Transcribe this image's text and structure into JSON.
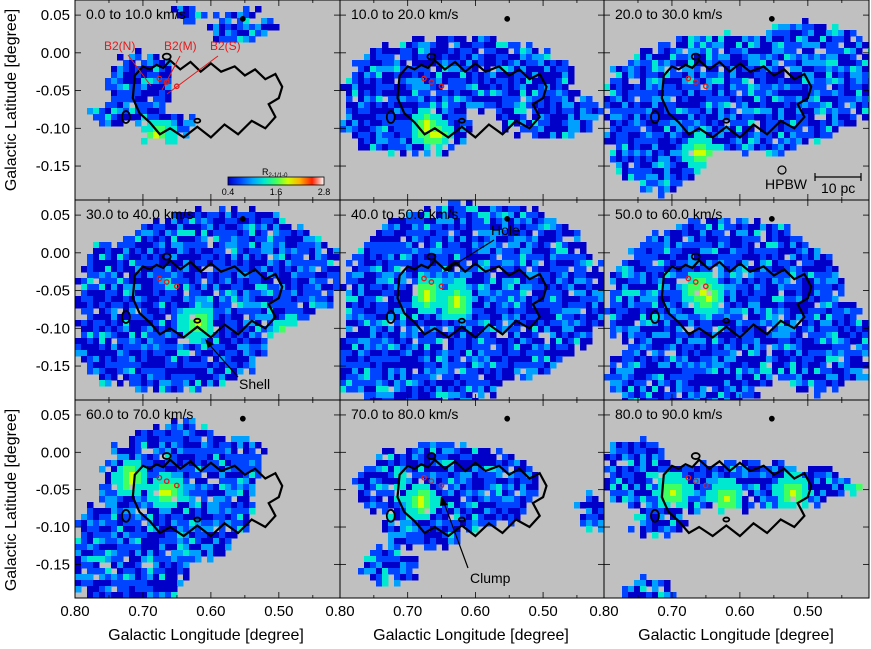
{
  "chart_data": {
    "type": "heatmap",
    "layout": "3x3 grid of channel maps",
    "x_axis": {
      "label": "Galactic Longitude [degree]",
      "ticks": [
        "0.80",
        "0.70",
        "0.60",
        "0.50"
      ],
      "range": [
        0.8,
        0.41
      ],
      "direction": "decreasing to the right"
    },
    "y_axis": {
      "label": "Galactic Latitude [degree]",
      "ticks": [
        "0.05",
        "0.00",
        "-0.05",
        "-0.10",
        "-0.15"
      ],
      "range": [
        -0.195,
        0.07
      ]
    },
    "background_color": "#c0c0c0",
    "colorbar": {
      "label": "R",
      "label_subscript": "2-1/1-0",
      "ticks": [
        "0.4",
        "1.6",
        "2.8"
      ],
      "range": [
        0.4,
        2.8
      ],
      "colormap": [
        "#0000c8",
        "#0044ff",
        "#00a0ff",
        "#00e8d0",
        "#40ff60",
        "#d0ff00",
        "#ffb000",
        "#ff2000",
        "#ffffff"
      ]
    },
    "panels": [
      {
        "label": "0.0 to 10.0 km/s"
      },
      {
        "label": "10.0 to 20.0 km/s"
      },
      {
        "label": "20.0 to 30.0 km/s"
      },
      {
        "label": "30.0 to 40.0 km/s"
      },
      {
        "label": "40.0 to 50.0 km/s"
      },
      {
        "label": "50.0 to 60.0 km/s"
      },
      {
        "label": "60.0 to 70.0 km/s"
      },
      {
        "label": "70.0 to 80.0 km/s"
      },
      {
        "label": "80.0 to 90.0 km/s"
      }
    ],
    "sources": [
      {
        "name": "B2(N)",
        "l": 0.667,
        "b": -0.034
      },
      {
        "name": "B2(M)",
        "l": 0.665,
        "b": -0.036
      },
      {
        "name": "B2(S)",
        "l": 0.659,
        "b": -0.039
      }
    ],
    "annotations": [
      {
        "text": "Hole",
        "panel": 5
      },
      {
        "text": "Shell",
        "panel": 4
      },
      {
        "text": "Clump",
        "panel": 8
      }
    ],
    "beam_label": "HPBW",
    "scale_bar_label": "10 pc"
  }
}
